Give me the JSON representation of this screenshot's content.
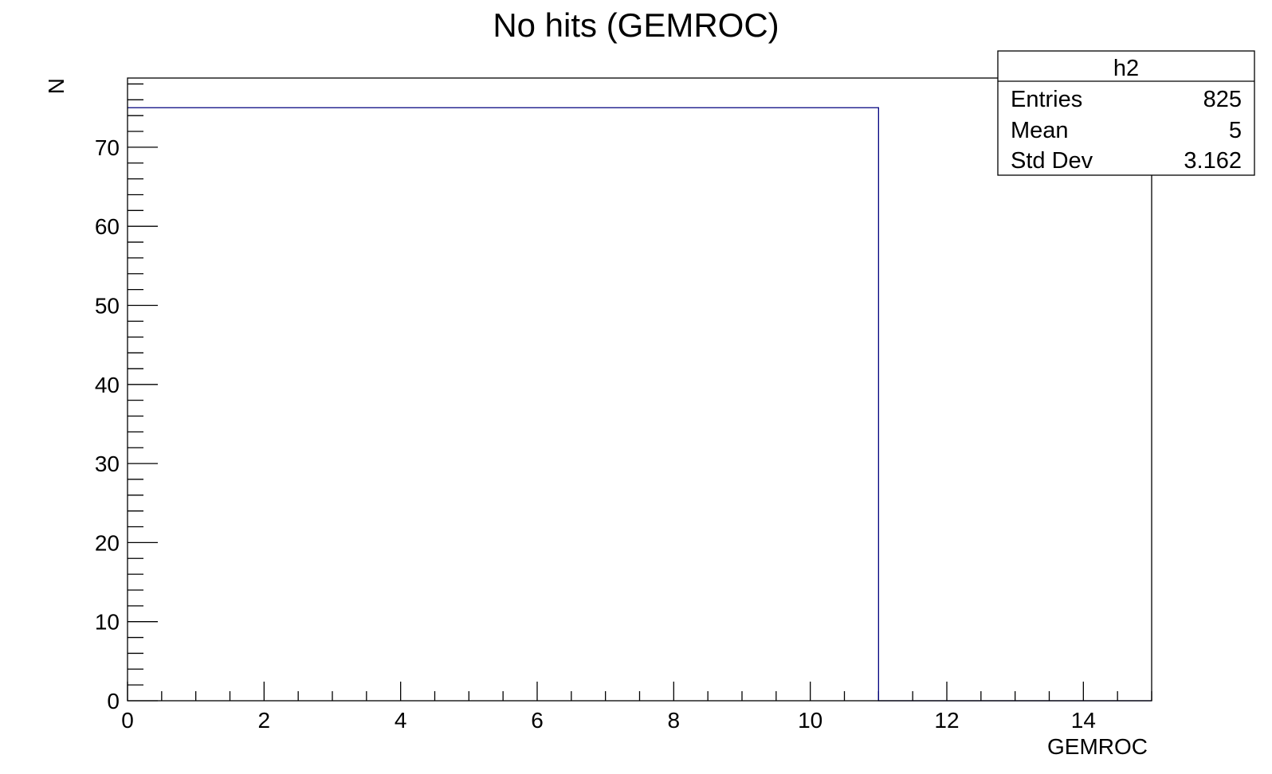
{
  "chart_data": {
    "type": "bar",
    "title": "No hits (GEMROC)",
    "xlabel": "GEMROC",
    "ylabel": "N",
    "xlim": [
      0,
      15
    ],
    "ylim": [
      0,
      78.75
    ],
    "x_ticks": [
      0,
      2,
      4,
      6,
      8,
      10,
      12,
      14
    ],
    "y_ticks": [
      0,
      10,
      20,
      30,
      40,
      50,
      60,
      70
    ],
    "bins": [
      {
        "low": 0,
        "high": 1,
        "value": 75
      },
      {
        "low": 1,
        "high": 2,
        "value": 75
      },
      {
        "low": 2,
        "high": 3,
        "value": 75
      },
      {
        "low": 3,
        "high": 4,
        "value": 75
      },
      {
        "low": 4,
        "high": 5,
        "value": 75
      },
      {
        "low": 5,
        "high": 6,
        "value": 75
      },
      {
        "low": 6,
        "high": 7,
        "value": 75
      },
      {
        "low": 7,
        "high": 8,
        "value": 75
      },
      {
        "low": 8,
        "high": 9,
        "value": 75
      },
      {
        "low": 9,
        "high": 10,
        "value": 75
      },
      {
        "low": 10,
        "high": 11,
        "value": 75
      },
      {
        "low": 11,
        "high": 12,
        "value": 0
      },
      {
        "low": 12,
        "high": 13,
        "value": 0
      },
      {
        "low": 13,
        "high": 14,
        "value": 0
      },
      {
        "low": 14,
        "high": 15,
        "value": 0
      }
    ],
    "line_color": "#00007f",
    "grid": false,
    "stats_box": {
      "name": "h2",
      "rows": [
        {
          "label": "Entries",
          "value": "825"
        },
        {
          "label": "Mean",
          "value": "5"
        },
        {
          "label": "Std Dev",
          "value": "3.162"
        }
      ]
    }
  }
}
